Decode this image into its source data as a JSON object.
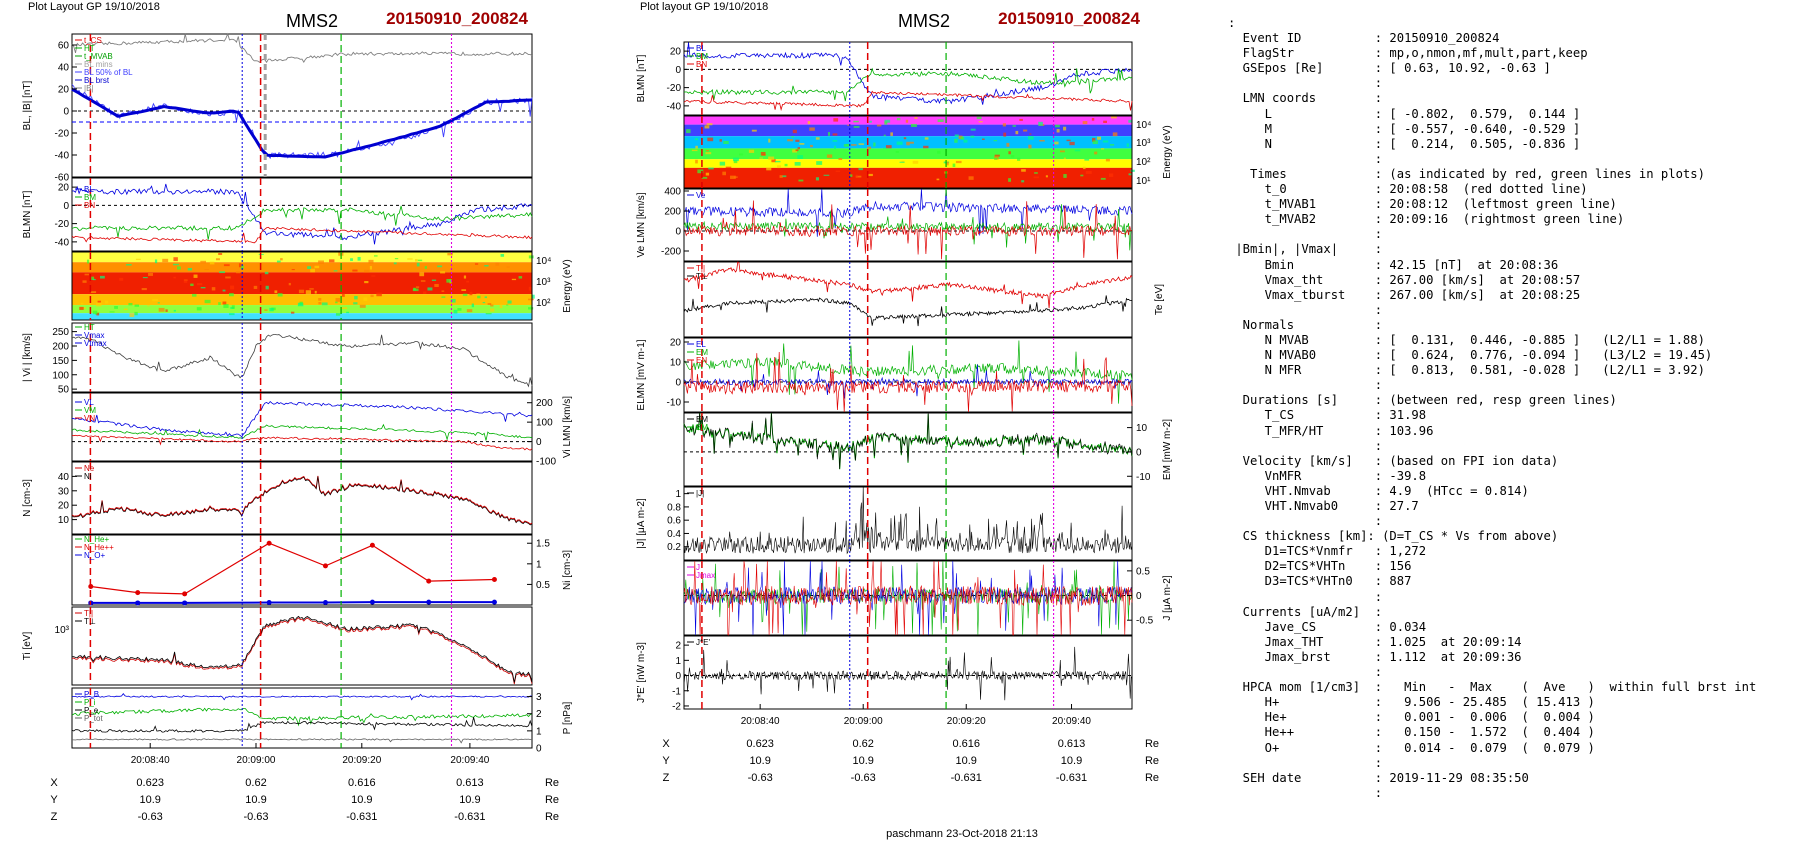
{
  "left_page": {
    "header_left": "Plot Layout GP 19/10/2018",
    "title": "MMS2",
    "event": "20150910_200824",
    "footer": "paschmann 23-Oct-2018 21:13",
    "time_ticks": [
      "20:08:40",
      "20:09:00",
      "20:09:20",
      "20:09:40"
    ],
    "position_rows": [
      {
        "label": "X",
        "values": [
          "0.623",
          "0.62",
          "0.616",
          "0.613"
        ],
        "unit": "Re"
      },
      {
        "label": "Y",
        "values": [
          "10.9",
          "10.9",
          "10.9",
          "10.9"
        ],
        "unit": "Re"
      },
      {
        "label": "Z",
        "values": [
          "-0.63",
          "-0.63",
          "-0.631",
          "-0.631"
        ],
        "unit": "Re"
      }
    ],
    "panel_labels": [
      "BL, |B| [nT]",
      "BLMN [nT]",
      "Energy (eV)",
      "| Vi | [km/s]",
      "Vi LMN [km/s]",
      "N [cm-3]",
      "Ni [cm-3]",
      "Ti [eV]",
      "P [nPa]"
    ],
    "legends": {
      "p1": [
        "t_CS",
        "HT",
        "t_MVAB",
        "BL mins",
        "BL 50% of BL",
        "BL brst",
        "|B|"
      ],
      "p2": [
        "BL",
        "BM",
        "BN"
      ],
      "p4": [
        "HT",
        "Vmax",
        "Vtmax"
      ],
      "p5": [
        "VL",
        "VM",
        "VN"
      ],
      "p6": [
        "Ne",
        "Ni"
      ],
      "p7": [
        "N_He+",
        "N_He++",
        "N_O+"
      ],
      "p8": [
        "T||",
        "T⊥"
      ],
      "p9": [
        "P_B",
        "P_i",
        "P_e",
        "P_tot"
      ]
    }
  },
  "mid_page": {
    "header_left": "Plot layout GP 19/10/2018",
    "title": "MMS2",
    "event": "20150910_200824",
    "footer": "paschmann 23-Oct-2018 21:13",
    "time_ticks": [
      "20:08:40",
      "20:09:00",
      "20:09:20",
      "20:09:40"
    ],
    "position_rows": [
      {
        "label": "X",
        "values": [
          "0.623",
          "0.62",
          "0.616",
          "0.613"
        ],
        "unit": "Re"
      },
      {
        "label": "Y",
        "values": [
          "10.9",
          "10.9",
          "10.9",
          "10.9"
        ],
        "unit": "Re"
      },
      {
        "label": "Z",
        "values": [
          "-0.63",
          "-0.63",
          "-0.631",
          "-0.631"
        ],
        "unit": "Re"
      }
    ],
    "panel_labels": [
      "BLMN [nT]",
      "Energy (eV)",
      "Ve LMN [km/s]",
      "Te [eV]",
      "ELMN [mV m-1]",
      "EM [mW m-2]",
      "|J| [μA m-2]",
      "J [μA m-2]",
      "J*E' [nW m-3]"
    ],
    "legends": {
      "p1": [
        "BL",
        "BM",
        "BN"
      ],
      "p3": [
        "Ve"
      ],
      "p4": [
        "T||",
        "T⊥"
      ],
      "p5": [
        "EL",
        "EM",
        "EN"
      ],
      "p6": [
        "EM",
        "EM"
      ],
      "p7": [
        "|J|"
      ],
      "p8": [
        "J",
        "Jmax"
      ],
      "p9": [
        "J*E'"
      ]
    }
  },
  "colors": {
    "red": "#e00000",
    "green": "#00b000",
    "blue": "#0000e0",
    "magenta": "#e000e0",
    "title_red": "#a00000"
  },
  "info_lines": [
    ":",
    "  Event ID          : 20150910_200824",
    "  FlagStr           : mp,o,nmon,mf,mult,part,keep",
    "  GSEpos [Re]       : [ 0.63, 10.92, -0.63 ]",
    "                    :",
    "  LMN coords        :",
    "     L              : [ -0.802,  0.579,  0.144 ]",
    "     M              : [ -0.557, -0.640, -0.529 ]",
    "     N              : [  0.214,  0.505, -0.836 ]",
    "                    :",
    "   Times            : (as indicated by red, green lines in plots)",
    "     t_0            : 20:08:58  (red dotted line)",
    "     t_MVAB1        : 20:08:12  (leftmost green line)",
    "     t_MVAB2        : 20:09:16  (rightmost green line)",
    "                    :",
    " |Bmin|, |Vmax|     :",
    "     Bmin           : 42.15 [nT]  at 20:08:36",
    "     Vmax_tht       : 267.00 [km/s]  at 20:08:57",
    "     Vmax_tburst    : 267.00 [km/s]  at 20:08:25",
    "                    :",
    "  Normals           :",
    "     N MVAB         : [  0.131,  0.446, -0.885 ]   (L2/L1 = 1.88)",
    "     N MVAB0        : [  0.624,  0.776, -0.094 ]   (L3/L2 = 19.45)",
    "     N MFR          : [  0.813,  0.581, -0.028 ]   (L2/L1 = 3.92)",
    "                    :",
    "  Durations [s]     : (between red, resp green lines)",
    "     T_CS           : 31.98",
    "     T_MFR/HT       : 103.96",
    "                    :",
    "  Velocity [km/s]   : (based on FPI ion data)",
    "     VnMFR          : -39.8",
    "     VHT.Nmvab      : 4.9  (HTcc = 0.814)",
    "     VHT.Nmvab0     : 27.7",
    "                    :",
    "  CS thickness [km]: (D=T_CS * Vs from above)",
    "     D1=TCS*Vnmfr   : 1,272",
    "     D2=TCS*VHTn    : 156",
    "     D3=TCS*VHTn0   : 887",
    "                    :",
    "  Currents [uA/m2]  :",
    "     Jave_CS        : 0.034",
    "     Jmax_THT       : 1.025  at 20:09:14",
    "     Jmax_brst      : 1.112  at 20:09:36",
    "                    :",
    "  HPCA mom [1/cm3]  :   Min   -  Max    (  Ave   )  within full brst int",
    "     H+             :   9.506 - 25.485  ( 15.413 )",
    "     He+            :   0.001 -  0.006  (  0.004 )",
    "     He++           :   0.150 -  1.572  (  0.404 )",
    "     O+             :   0.014 -  0.079  (  0.079 )",
    "                    :",
    "  SEH date          : 2019-11-29 08:35:50",
    "                    :"
  ],
  "chart_data": [
    {
      "type": "line",
      "title": "MMS2 20150910_200824",
      "x": [
        "20:08:40",
        "20:09:00",
        "20:09:20",
        "20:09:40"
      ],
      "panels": [
        {
          "ylabel": "BL, |B| [nT]",
          "ylim": [
            -60,
            70
          ],
          "ticks": [
            -60,
            -40,
            -20,
            0,
            20,
            40,
            60
          ]
        },
        {
          "ylabel": "BLMN [nT]",
          "ylim": [
            -50,
            30
          ],
          "ticks": [
            -40,
            -20,
            0,
            20
          ]
        },
        {
          "ylabel": "Energy (eV)",
          "type": "heatmap",
          "ticks": [
            "10^2",
            "10^3",
            "10^4"
          ]
        },
        {
          "ylabel": "| Vi | [km/s]",
          "ylim": [
            40,
            280
          ],
          "ticks": [
            50,
            100,
            150,
            200,
            250
          ]
        },
        {
          "ylabel": "Vi LMN [km/s]",
          "ylim": [
            -100,
            250
          ],
          "ticks": [
            -100,
            0,
            100,
            200
          ]
        },
        {
          "ylabel": "N [cm-3]",
          "ylim": [
            0,
            50
          ],
          "ticks": [
            10,
            20,
            30,
            40
          ]
        },
        {
          "ylabel": "Ni [cm-3]",
          "ylim": [
            0,
            1.7
          ],
          "ticks": [
            0.5,
            1.0,
            1.5
          ],
          "series": [
            {
              "name": "N_He++",
              "x_sec": [
                4,
                14,
                24,
                42,
                54,
                64,
                76,
                90
              ],
              "values": [
                0.45,
                0.3,
                0.27,
                1.5,
                0.95,
                1.45,
                0.58,
                0.62
              ]
            },
            {
              "name": "N_O+",
              "x_sec": [
                4,
                14,
                24,
                42,
                54,
                64,
                76,
                90
              ],
              "values": [
                0.05,
                0.05,
                0.05,
                0.06,
                0.06,
                0.07,
                0.07,
                0.07
              ]
            }
          ]
        },
        {
          "ylabel": "Ti [eV]",
          "ticks": [
            "10^3"
          ]
        },
        {
          "ylabel": "P [nPa]",
          "ylim": [
            0,
            3.5
          ],
          "ticks": [
            0,
            1,
            2,
            3
          ]
        }
      ]
    },
    {
      "type": "line",
      "title": "MMS2 20150910_200824",
      "x": [
        "20:08:40",
        "20:09:00",
        "20:09:20",
        "20:09:40"
      ],
      "panels": [
        {
          "ylabel": "BLMN [nT]",
          "ylim": [
            -50,
            30
          ],
          "ticks": [
            -40,
            -20,
            0,
            20
          ]
        },
        {
          "ylabel": "Energy (eV)",
          "type": "heatmap",
          "ticks": [
            "10^1",
            "10^2",
            "10^3",
            "10^4"
          ]
        },
        {
          "ylabel": "Ve LMN [km/s]",
          "ylim": [
            -300,
            420
          ],
          "ticks": [
            -200,
            0,
            200,
            400
          ]
        },
        {
          "ylabel": "Te [eV]"
        },
        {
          "ylabel": "ELMN [mV m-1]",
          "ylim": [
            -15,
            22
          ],
          "ticks": [
            -10,
            0,
            10,
            20
          ]
        },
        {
          "ylabel": "EM [mW m-2]",
          "ylim": [
            -14,
            16
          ],
          "ticks": [
            -10,
            0,
            10
          ]
        },
        {
          "ylabel": "|J| [μA m-2]",
          "ylim": [
            0,
            1.1
          ],
          "ticks": [
            0.2,
            0.4,
            0.6,
            0.8,
            1.0
          ]
        },
        {
          "ylabel": "J [μA m-2]",
          "ylim": [
            -0.8,
            0.7
          ],
          "ticks": [
            -0.5,
            0.0,
            0.5
          ]
        },
        {
          "ylabel": "J*E' [nW m-3]",
          "ylim": [
            -2.2,
            2.6
          ],
          "ticks": [
            -2,
            -1,
            0,
            1,
            2
          ]
        }
      ]
    }
  ]
}
